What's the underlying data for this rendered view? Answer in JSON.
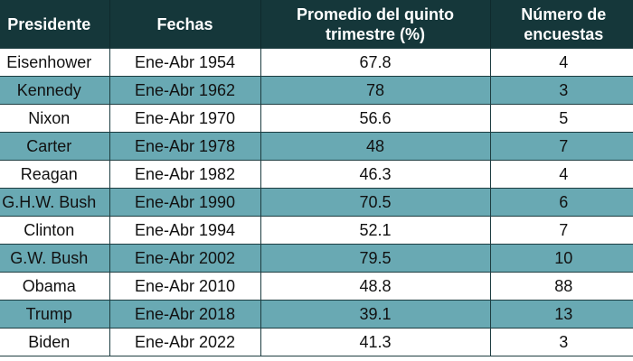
{
  "chart_data": {
    "type": "table",
    "columns": [
      "Presidente",
      "Fechas",
      "Promedio del quinto trimestre (%)",
      "Número de encuestas"
    ],
    "rows": [
      [
        "Eisenhower",
        "Ene-Abr 1954",
        "67.8",
        "4"
      ],
      [
        "Kennedy",
        "Ene-Abr 1962",
        "78",
        "3"
      ],
      [
        "Nixon",
        "Ene-Abr 1970",
        "56.6",
        "5"
      ],
      [
        "Carter",
        "Ene-Abr 1978",
        "48",
        "7"
      ],
      [
        "Reagan",
        "Ene-Abr 1982",
        "46.3",
        "4"
      ],
      [
        "G.H.W. Bush",
        "Ene-Abr 1990",
        "70.5",
        "6"
      ],
      [
        "Clinton",
        "Ene-Abr 1994",
        "52.1",
        "7"
      ],
      [
        "G.W. Bush",
        "Ene-Abr 2002",
        "79.5",
        "10"
      ],
      [
        "Obama",
        "Ene-Abr 2010",
        "48.8",
        "88"
      ],
      [
        "Trump",
        "Ene-Abr 2018",
        "39.1",
        "13"
      ],
      [
        "Biden",
        "Ene-Abr 2022",
        "41.3",
        "3"
      ]
    ]
  },
  "colors": {
    "header_bg": "#15373a",
    "header_text": "#ffffff",
    "row_alt_bg": "#69a9b3",
    "row_bg": "#ffffff",
    "grid": "#1c3c40"
  }
}
